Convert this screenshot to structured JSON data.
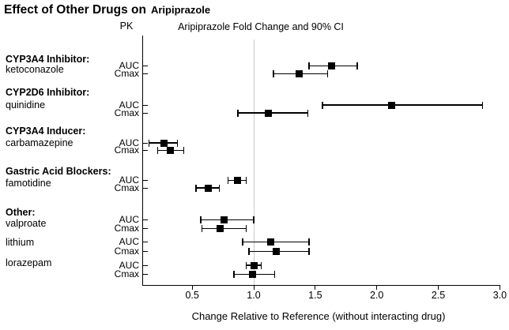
{
  "title": {
    "main": "Effect of Other Drugs on",
    "drug": "Aripiprazole"
  },
  "headers": {
    "pk": "PK",
    "plot": "Aripiprazole Fold Change and 90% CI"
  },
  "x_axis": {
    "label": "Change Relative to Reference (without interacting drug)",
    "tick_labels": [
      "0.5",
      "1.0",
      "1.5",
      "2.0",
      "2.5",
      "3.0"
    ]
  },
  "colors": {
    "marker": "#000000",
    "axis": "#000000",
    "reference_line": "#c9c9c9",
    "background": "#ffffff",
    "text": "#000000"
  },
  "chart_data": {
    "type": "forest",
    "title": "Effect of Other Drugs on Aripiprazole",
    "subtitle": "Aripiprazole Fold Change and 90% CI",
    "xlabel": "Change Relative to Reference (without interacting drug)",
    "x_ticks": [
      0.5,
      1.0,
      1.5,
      2.0,
      2.5,
      3.0
    ],
    "xlim": [
      0.09,
      3.03
    ],
    "reference_value": 1.0,
    "ci_level": "90% CI",
    "legend": "none",
    "groups": [
      {
        "category": "CYP3A4 Inhibitor:",
        "drugs": [
          {
            "name": "ketoconazole",
            "rows": [
              {
                "pk": "AUC",
                "value": 1.63,
                "lo": 1.45,
                "hi": 1.84
              },
              {
                "pk": "Cmax",
                "value": 1.37,
                "lo": 1.16,
                "hi": 1.6
              }
            ]
          }
        ]
      },
      {
        "category": "CYP2D6 Inhibitor:",
        "drugs": [
          {
            "name": "quinidine",
            "rows": [
              {
                "pk": "AUC",
                "value": 2.12,
                "lo": 1.56,
                "hi": 2.86
              },
              {
                "pk": "Cmax",
                "value": 1.12,
                "lo": 0.87,
                "hi": 1.44
              }
            ]
          }
        ]
      },
      {
        "category": "CYP3A4 Inducer:",
        "drugs": [
          {
            "name": "carbamazepine",
            "rows": [
              {
                "pk": "AUC",
                "value": 0.27,
                "lo": 0.15,
                "hi": 0.38
              },
              {
                "pk": "Cmax",
                "value": 0.32,
                "lo": 0.22,
                "hi": 0.43
              }
            ]
          }
        ]
      },
      {
        "category": "Gastric Acid Blockers:",
        "drugs": [
          {
            "name": "famotidine",
            "rows": [
              {
                "pk": "AUC",
                "value": 0.87,
                "lo": 0.79,
                "hi": 0.94
              },
              {
                "pk": "Cmax",
                "value": 0.63,
                "lo": 0.53,
                "hi": 0.72
              }
            ]
          }
        ]
      },
      {
        "category": "Other:",
        "drugs": [
          {
            "name": "valproate",
            "rows": [
              {
                "pk": "AUC",
                "value": 0.76,
                "lo": 0.57,
                "hi": 1.0
              },
              {
                "pk": "Cmax",
                "value": 0.73,
                "lo": 0.58,
                "hi": 0.94
              }
            ]
          },
          {
            "name": "lithium",
            "rows": [
              {
                "pk": "AUC",
                "value": 1.14,
                "lo": 0.91,
                "hi": 1.45
              },
              {
                "pk": "Cmax",
                "value": 1.18,
                "lo": 0.96,
                "hi": 1.45
              }
            ]
          },
          {
            "name": "lorazepam",
            "rows": [
              {
                "pk": "AUC",
                "value": 1.0,
                "lo": 0.94,
                "hi": 1.06
              },
              {
                "pk": "Cmax",
                "value": 0.99,
                "lo": 0.84,
                "hi": 1.17
              }
            ]
          }
        ]
      }
    ]
  }
}
